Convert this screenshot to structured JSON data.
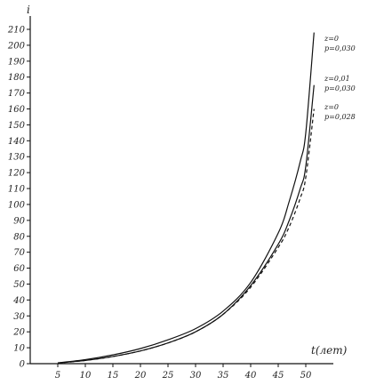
{
  "chart_data": {
    "type": "line",
    "xlabel": "t(лет)",
    "ylabel": "i",
    "xlim": [
      0,
      55
    ],
    "ylim": [
      0,
      210
    ],
    "x_ticks": [
      5,
      10,
      15,
      20,
      25,
      30,
      35,
      40,
      45,
      50
    ],
    "y_ticks": [
      0,
      10,
      20,
      30,
      40,
      50,
      60,
      70,
      80,
      90,
      100,
      110,
      120,
      130,
      140,
      150,
      160,
      170,
      180,
      190,
      200,
      210
    ],
    "grid": false,
    "series": [
      {
        "name": "z=0 p=0.030",
        "label_lines": [
          "z=0",
          "p=0,030"
        ],
        "style": "solid",
        "x": [
          5,
          10,
          15,
          20,
          25,
          30,
          35,
          40,
          45,
          47,
          49,
          50,
          51.5
        ],
        "y": [
          0.5,
          2.5,
          5.5,
          9.5,
          15,
          22,
          33,
          51,
          82,
          102,
          127,
          145,
          208
        ]
      },
      {
        "name": "z=0.01 p=0.030",
        "label_lines": [
          "z=0,01",
          "p=0,030"
        ],
        "style": "solid",
        "x": [
          5,
          10,
          15,
          20,
          25,
          30,
          35,
          40,
          45,
          47,
          49,
          50,
          51.5
        ],
        "y": [
          0.4,
          2,
          4.5,
          8,
          13,
          20,
          31,
          49,
          75,
          90,
          110,
          124,
          175
        ]
      },
      {
        "name": "z=0 p=0.028",
        "label_lines": [
          "z=0",
          "p=0,028"
        ],
        "style": "dashed",
        "x": [
          5,
          10,
          15,
          20,
          25,
          30,
          35,
          40,
          45,
          47,
          49,
          50,
          51.5
        ],
        "y": [
          0.4,
          2,
          4.5,
          8,
          13,
          20,
          31,
          48,
          73,
          86,
          104,
          117,
          160
        ]
      }
    ]
  }
}
